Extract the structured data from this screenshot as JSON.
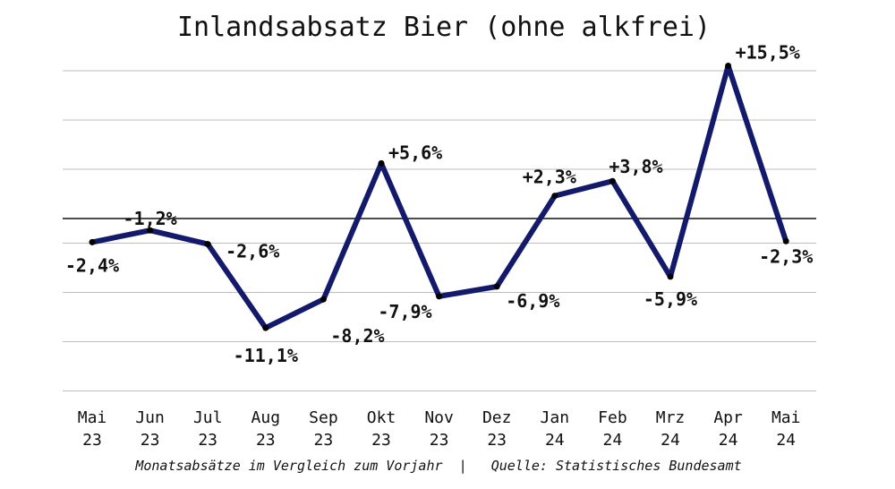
{
  "chart_data": {
    "type": "line",
    "title": "Inlandsabsatz Bier (ohne alkfrei)",
    "footnote": "Monatsabsätze im Vergleich zum Vorjahr  |   Quelle: Statistisches Bundesamt",
    "categories": [
      "Mai 23",
      "Jun 23",
      "Jul 23",
      "Aug 23",
      "Sep 23",
      "Okt 23",
      "Nov 23",
      "Dez 23",
      "Jan 24",
      "Feb 24",
      "Mrz 24",
      "Apr 24",
      "Mai 24"
    ],
    "values": [
      -2.4,
      -1.2,
      -2.6,
      -11.1,
      -8.2,
      5.6,
      -7.9,
      -6.9,
      2.3,
      3.8,
      -5.9,
      15.5,
      -2.3
    ],
    "data_labels": [
      "-2,4%",
      "-1,2%",
      "-2,6%",
      "-11,1%",
      "-8,2%",
      "+5,6%",
      "-7,9%",
      "-6,9%",
      "+2,3%",
      "+3,8%",
      "-5,9%",
      "+15,5%",
      "-2,3%"
    ],
    "ylim": [
      -17.5,
      17.5
    ],
    "grid": true,
    "line_color": "#131a6b",
    "baseline_color": "#111111",
    "grid_color": "#bdbdbd"
  }
}
